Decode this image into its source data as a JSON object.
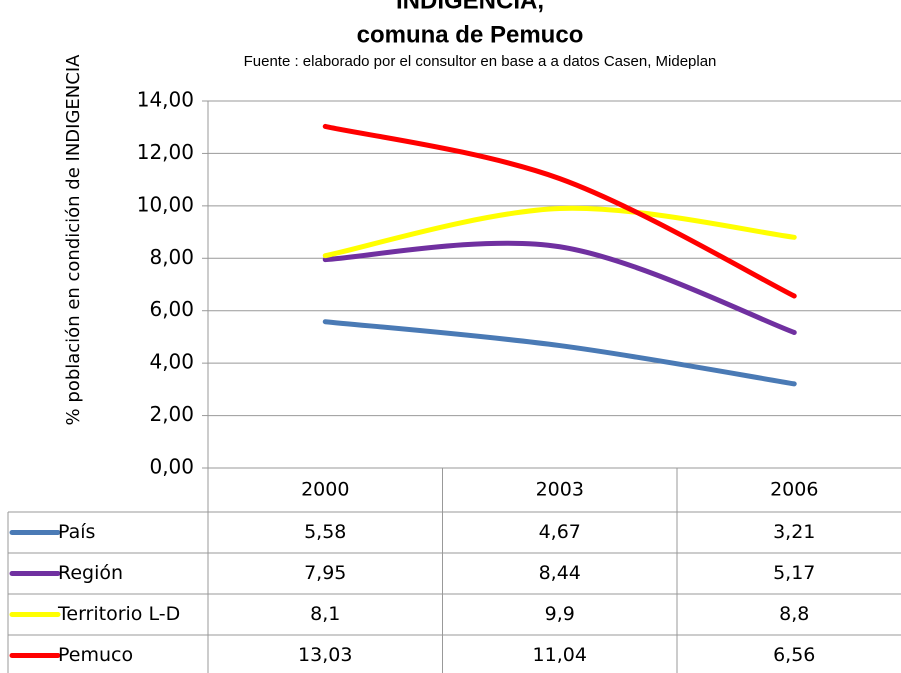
{
  "chart_data": {
    "type": "line",
    "title": [
      "INDIGENCIA,",
      "comuna de Pemuco"
    ],
    "subtitle": "Fuente : elaborado por el consultor en base a a datos Casen, Mideplan",
    "y_label": "% población en condición de  INDIGENCIA",
    "categories": [
      "2000",
      "2003",
      "2006"
    ],
    "series": [
      {
        "name": "País",
        "color": "#4a7ab5",
        "values": [
          5.58,
          4.67,
          3.21
        ],
        "value_labels": [
          "5,58",
          "4,67",
          "3,21"
        ]
      },
      {
        "name": "Región",
        "color": "#7030a0",
        "values": [
          7.95,
          8.44,
          5.17
        ],
        "value_labels": [
          "7,95",
          "8,44",
          "5,17"
        ]
      },
      {
        "name": "Territorio L-D",
        "color": "#ffff00",
        "values": [
          8.1,
          9.9,
          8.8
        ],
        "value_labels": [
          "8,1",
          "9,9",
          "8,8"
        ]
      },
      {
        "name": "Pemuco",
        "color": "#ff0000",
        "values": [
          13.03,
          11.04,
          6.56
        ],
        "value_labels": [
          "13,03",
          "11,04",
          "6,56"
        ]
      }
    ],
    "ylim": [
      0,
      14
    ],
    "yticks": [
      {
        "value": 0,
        "label": "0,00"
      },
      {
        "value": 2,
        "label": "2,00"
      },
      {
        "value": 4,
        "label": "4,00"
      },
      {
        "value": 6,
        "label": "6,00"
      },
      {
        "value": 8,
        "label": "8,00"
      },
      {
        "value": 10,
        "label": "10,00"
      },
      {
        "value": 12,
        "label": "12,00"
      },
      {
        "value": 14,
        "label": "14,00"
      }
    ],
    "grid": true,
    "smooth": true
  }
}
